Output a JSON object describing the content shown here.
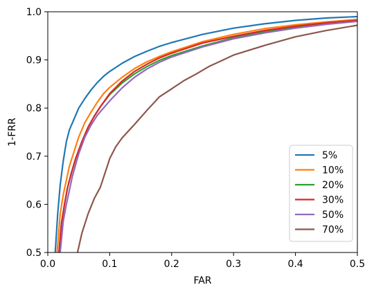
{
  "chart_data": {
    "type": "line",
    "xlabel": "FAR",
    "ylabel": "1-FRR",
    "xlim": [
      0.0,
      0.5
    ],
    "ylim": [
      0.5,
      1.0
    ],
    "xticks": [
      "0.0",
      "0.1",
      "0.2",
      "0.3",
      "0.4",
      "0.5"
    ],
    "yticks": [
      "0.5",
      "0.6",
      "0.7",
      "0.8",
      "0.9",
      "1.0"
    ],
    "grid": false,
    "legend_position": "lower-right",
    "series": [
      {
        "name": "5%",
        "color": "#1f77b4",
        "x": [
          0.012,
          0.016,
          0.02,
          0.025,
          0.03,
          0.035,
          0.04,
          0.05,
          0.06,
          0.07,
          0.08,
          0.09,
          0.1,
          0.12,
          0.14,
          0.16,
          0.18,
          0.2,
          0.25,
          0.3,
          0.35,
          0.4,
          0.45,
          0.5
        ],
        "y": [
          0.5,
          0.58,
          0.64,
          0.69,
          0.73,
          0.755,
          0.77,
          0.8,
          0.82,
          0.838,
          0.853,
          0.866,
          0.876,
          0.893,
          0.907,
          0.918,
          0.928,
          0.936,
          0.953,
          0.966,
          0.975,
          0.982,
          0.987,
          0.99
        ]
      },
      {
        "name": "10%",
        "color": "#ff7f0e",
        "x": [
          0.015,
          0.02,
          0.025,
          0.03,
          0.035,
          0.04,
          0.05,
          0.06,
          0.07,
          0.08,
          0.09,
          0.1,
          0.12,
          0.14,
          0.16,
          0.18,
          0.2,
          0.25,
          0.3,
          0.35,
          0.4,
          0.45,
          0.5
        ],
        "y": [
          0.5,
          0.58,
          0.62,
          0.65,
          0.68,
          0.7,
          0.74,
          0.77,
          0.792,
          0.812,
          0.83,
          0.843,
          0.864,
          0.882,
          0.896,
          0.907,
          0.917,
          0.938,
          0.953,
          0.965,
          0.973,
          0.979,
          0.984
        ]
      },
      {
        "name": "20%",
        "color": "#2ca02c",
        "x": [
          0.018,
          0.022,
          0.027,
          0.032,
          0.038,
          0.045,
          0.055,
          0.065,
          0.075,
          0.085,
          0.1,
          0.12,
          0.14,
          0.16,
          0.18,
          0.2,
          0.25,
          0.3,
          0.35,
          0.4,
          0.45,
          0.5
        ],
        "y": [
          0.5,
          0.56,
          0.6,
          0.635,
          0.665,
          0.695,
          0.73,
          0.76,
          0.783,
          0.803,
          0.828,
          0.852,
          0.871,
          0.886,
          0.899,
          0.909,
          0.929,
          0.946,
          0.958,
          0.968,
          0.976,
          0.982
        ]
      },
      {
        "name": "30%",
        "color": "#d62728",
        "x": [
          0.018,
          0.022,
          0.027,
          0.032,
          0.038,
          0.045,
          0.055,
          0.065,
          0.075,
          0.085,
          0.1,
          0.12,
          0.14,
          0.16,
          0.18,
          0.2,
          0.25,
          0.3,
          0.35,
          0.4,
          0.45,
          0.5
        ],
        "y": [
          0.5,
          0.56,
          0.6,
          0.635,
          0.665,
          0.695,
          0.73,
          0.76,
          0.783,
          0.803,
          0.83,
          0.856,
          0.876,
          0.891,
          0.904,
          0.914,
          0.935,
          0.949,
          0.961,
          0.97,
          0.977,
          0.982
        ]
      },
      {
        "name": "50%",
        "color": "#9467bd",
        "x": [
          0.02,
          0.025,
          0.03,
          0.035,
          0.04,
          0.05,
          0.06,
          0.07,
          0.08,
          0.09,
          0.1,
          0.12,
          0.14,
          0.16,
          0.18,
          0.2,
          0.25,
          0.3,
          0.35,
          0.4,
          0.45,
          0.5
        ],
        "y": [
          0.5,
          0.565,
          0.6,
          0.63,
          0.66,
          0.705,
          0.74,
          0.765,
          0.785,
          0.8,
          0.815,
          0.842,
          0.864,
          0.881,
          0.895,
          0.906,
          0.927,
          0.944,
          0.956,
          0.966,
          0.974,
          0.98
        ]
      },
      {
        "name": "70%",
        "color": "#8c564b",
        "x": [
          0.048,
          0.055,
          0.065,
          0.075,
          0.085,
          0.095,
          0.1,
          0.11,
          0.12,
          0.13,
          0.14,
          0.16,
          0.18,
          0.2,
          0.22,
          0.24,
          0.26,
          0.28,
          0.3,
          0.35,
          0.4,
          0.45,
          0.5
        ],
        "y": [
          0.5,
          0.54,
          0.58,
          0.612,
          0.636,
          0.675,
          0.695,
          0.72,
          0.738,
          0.752,
          0.766,
          0.795,
          0.823,
          0.84,
          0.857,
          0.871,
          0.886,
          0.898,
          0.91,
          0.93,
          0.948,
          0.961,
          0.972
        ]
      }
    ]
  }
}
